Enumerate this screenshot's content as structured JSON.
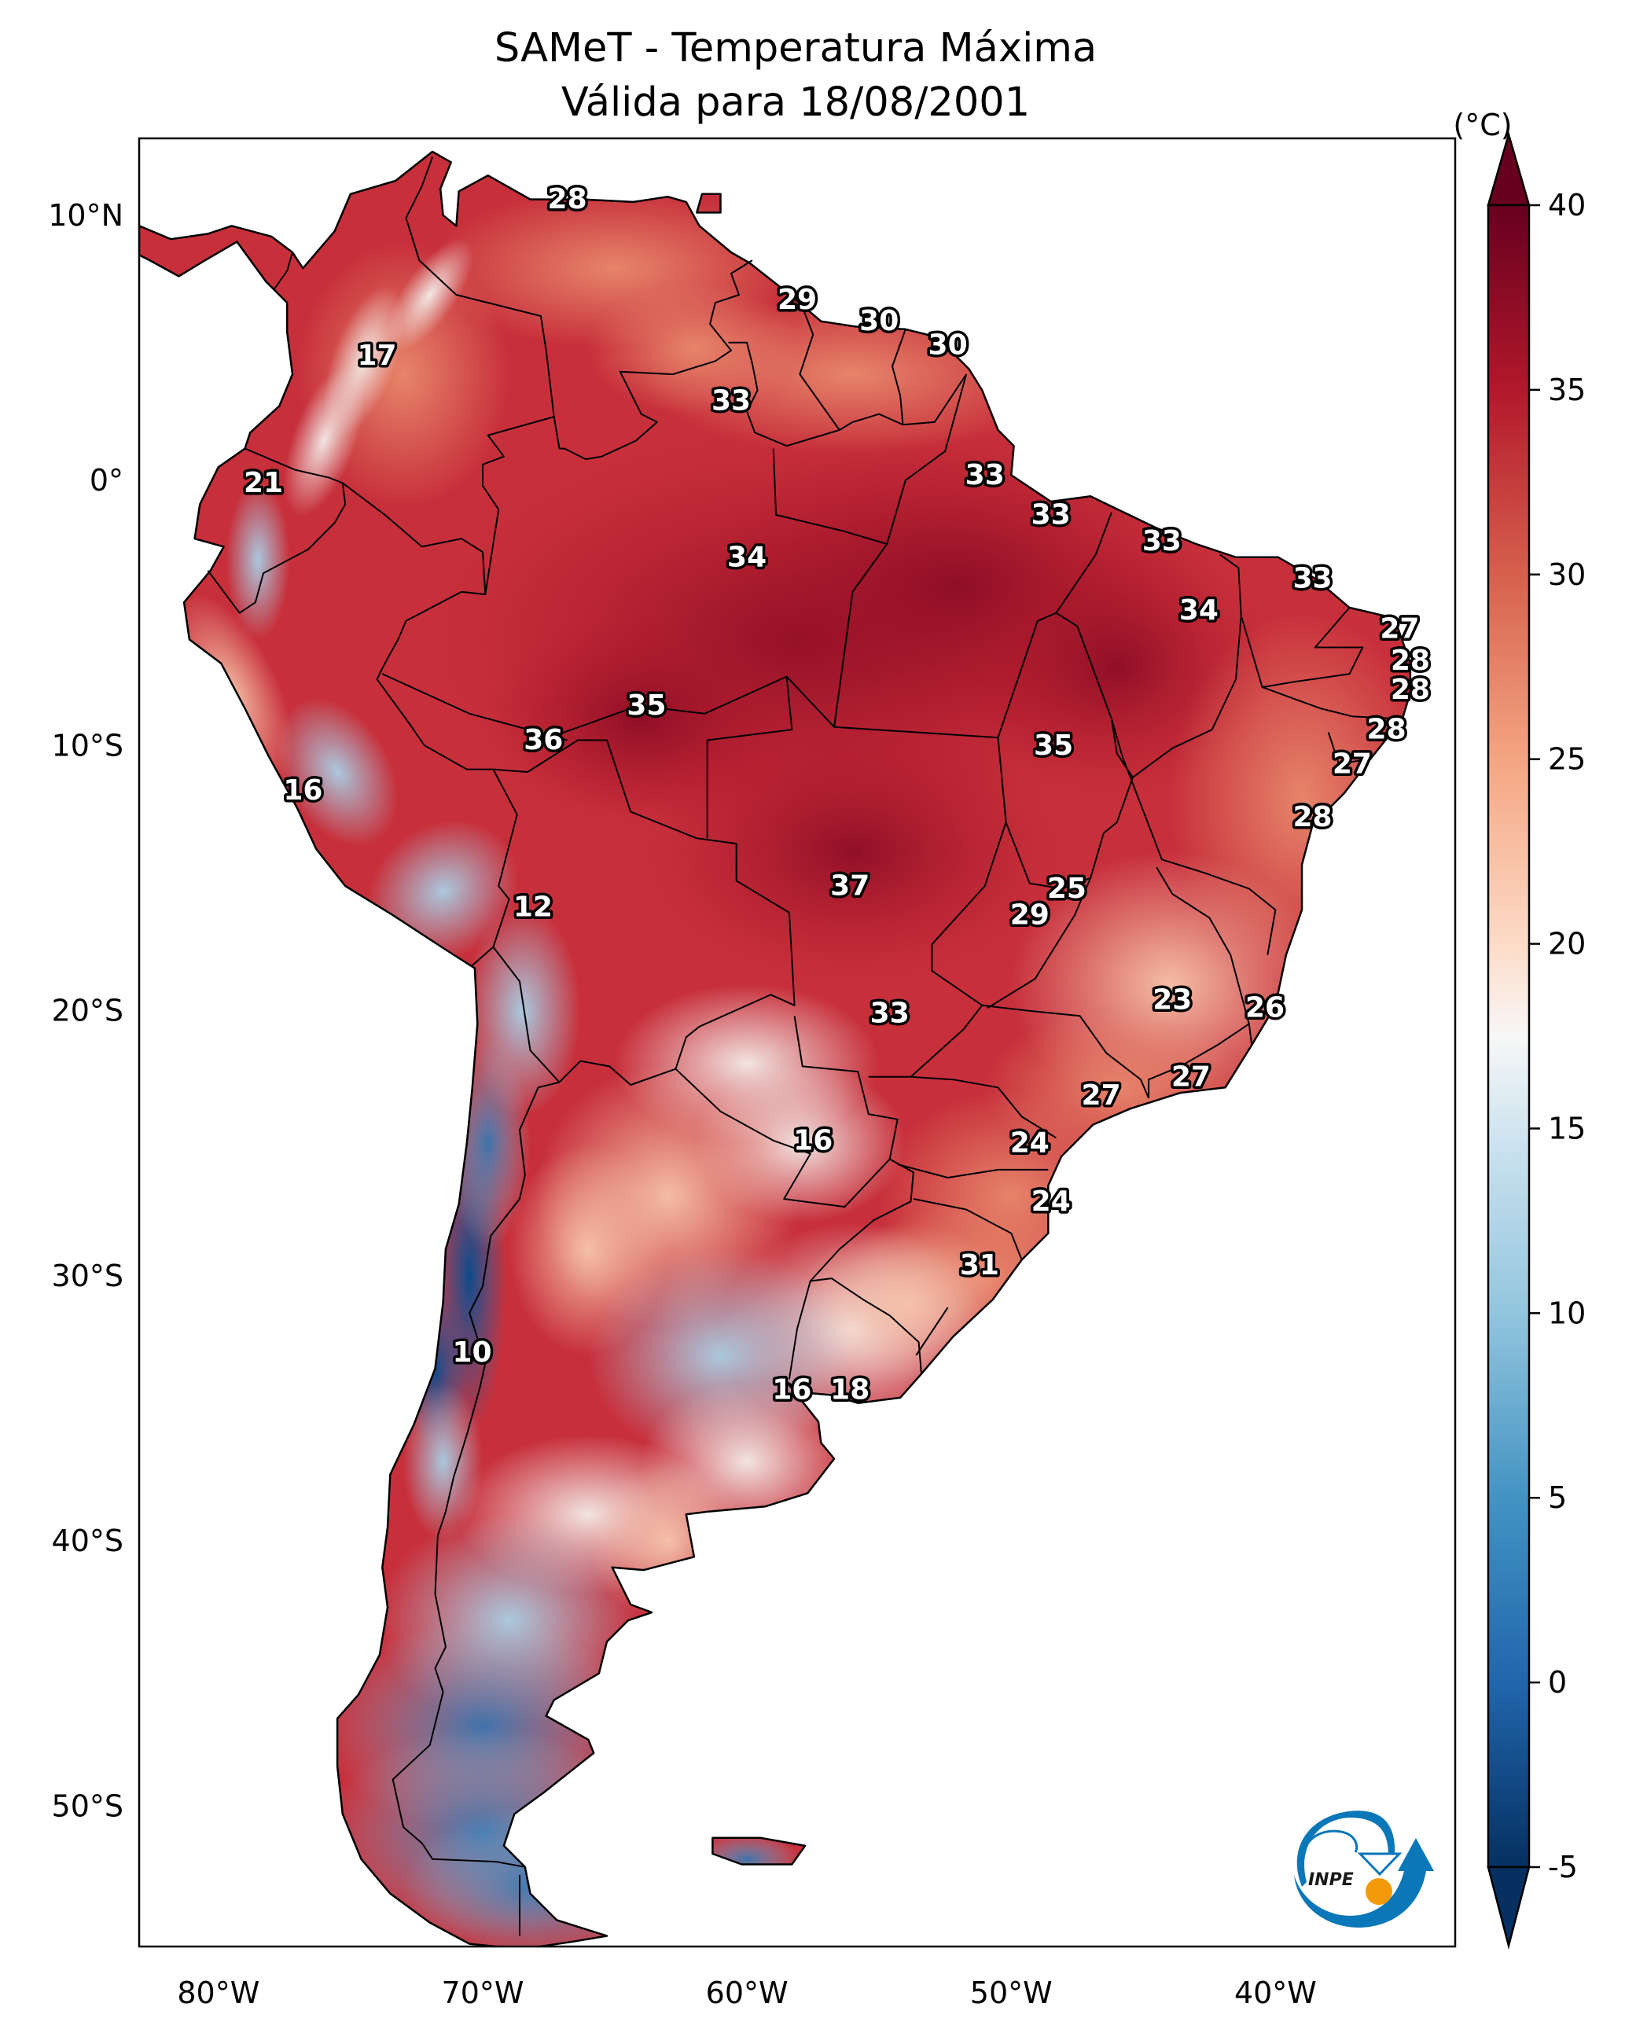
{
  "chart_data": {
    "type": "heatmap",
    "title": "SAMeT - Temperatura Máxima",
    "subtitle": "Válida para 18/08/2001",
    "variable": "Temperatura Máxima",
    "valid_date": "18/08/2001",
    "colormap": "RdBu_r",
    "colorbar": {
      "label": "(°C)",
      "vmin": -5,
      "vmax": 40,
      "extend": "both",
      "ticks": [
        -5,
        0,
        5,
        10,
        15,
        20,
        25,
        30,
        35,
        40
      ],
      "tick_labels": [
        "-5",
        "0",
        "5",
        "10",
        "15",
        "20",
        "25",
        "30",
        "35",
        "40"
      ],
      "stops": [
        {
          "value": -5,
          "color": "#053061"
        },
        {
          "value": 0,
          "color": "#2166ac"
        },
        {
          "value": 5,
          "color": "#4393c3"
        },
        {
          "value": 10,
          "color": "#92c5de"
        },
        {
          "value": 15,
          "color": "#d1e5f0"
        },
        {
          "value": 17.5,
          "color": "#f7f7f7"
        },
        {
          "value": 20,
          "color": "#fddbc7"
        },
        {
          "value": 25,
          "color": "#f4a582"
        },
        {
          "value": 30,
          "color": "#d6604d"
        },
        {
          "value": 35,
          "color": "#b2182b"
        },
        {
          "value": 40,
          "color": "#67001f"
        }
      ]
    },
    "xaxis": {
      "lon_range": [
        -83.0,
        -33.2
      ],
      "ticks": [
        -80,
        -70,
        -60,
        -50,
        -40
      ],
      "tick_labels": [
        "80°W",
        "70°W",
        "60°W",
        "50°W",
        "40°W"
      ]
    },
    "yaxis": {
      "lat_range": [
        -55.3,
        12.9
      ],
      "ticks": [
        10,
        0,
        -10,
        -20,
        -30,
        -40,
        -50
      ],
      "tick_labels": [
        "10°N",
        "0°",
        "10°S",
        "20°S",
        "30°S",
        "40°S",
        "50°S"
      ]
    },
    "grid": false,
    "point_labels": [
      {
        "lon": -66.8,
        "lat": 10.6,
        "value": 28
      },
      {
        "lon": -74.0,
        "lat": 4.7,
        "value": 17
      },
      {
        "lon": -58.1,
        "lat": 6.8,
        "value": 29
      },
      {
        "lon": -55.0,
        "lat": 6.0,
        "value": 30
      },
      {
        "lon": -52.4,
        "lat": 5.1,
        "value": 30
      },
      {
        "lon": -60.6,
        "lat": 3.0,
        "value": 33
      },
      {
        "lon": -78.3,
        "lat": -0.1,
        "value": 21
      },
      {
        "lon": -51.0,
        "lat": 0.2,
        "value": 33
      },
      {
        "lon": -48.5,
        "lat": -1.3,
        "value": 33
      },
      {
        "lon": -60.0,
        "lat": -2.9,
        "value": 34
      },
      {
        "lon": -44.3,
        "lat": -2.3,
        "value": 33
      },
      {
        "lon": -38.6,
        "lat": -3.7,
        "value": 33
      },
      {
        "lon": -42.9,
        "lat": -4.9,
        "value": 34
      },
      {
        "lon": -35.3,
        "lat": -5.6,
        "value": 27
      },
      {
        "lon": -34.9,
        "lat": -6.8,
        "value": 28
      },
      {
        "lon": -34.9,
        "lat": -7.9,
        "value": 28
      },
      {
        "lon": -63.8,
        "lat": -8.5,
        "value": 35
      },
      {
        "lon": -35.8,
        "lat": -9.4,
        "value": 28
      },
      {
        "lon": -67.7,
        "lat": -9.8,
        "value": 36
      },
      {
        "lon": -48.4,
        "lat": -10.0,
        "value": 35
      },
      {
        "lon": -37.1,
        "lat": -10.7,
        "value": 27
      },
      {
        "lon": -76.8,
        "lat": -11.7,
        "value": 16
      },
      {
        "lon": -38.6,
        "lat": -12.7,
        "value": 28
      },
      {
        "lon": -56.1,
        "lat": -15.3,
        "value": 37
      },
      {
        "lon": -47.9,
        "lat": -15.4,
        "value": 25
      },
      {
        "lon": -68.1,
        "lat": -16.1,
        "value": 12
      },
      {
        "lon": -49.3,
        "lat": -16.4,
        "value": 29
      },
      {
        "lon": -43.9,
        "lat": -19.6,
        "value": 23
      },
      {
        "lon": -54.6,
        "lat": -20.1,
        "value": 33
      },
      {
        "lon": -40.4,
        "lat": -19.9,
        "value": 26
      },
      {
        "lon": -43.2,
        "lat": -22.5,
        "value": 27
      },
      {
        "lon": -46.6,
        "lat": -23.2,
        "value": 27
      },
      {
        "lon": -57.5,
        "lat": -24.9,
        "value": 16
      },
      {
        "lon": -49.3,
        "lat": -25.0,
        "value": 24
      },
      {
        "lon": -48.5,
        "lat": -27.2,
        "value": 24
      },
      {
        "lon": -51.2,
        "lat": -29.6,
        "value": 31
      },
      {
        "lon": -70.4,
        "lat": -32.9,
        "value": 10
      },
      {
        "lon": -58.3,
        "lat": -34.3,
        "value": 16
      },
      {
        "lon": -56.1,
        "lat": -34.3,
        "value": 18
      }
    ]
  },
  "logo": {
    "text": "INPE",
    "colors": {
      "blue": "#0a77b8",
      "orange": "#f29a0a"
    }
  }
}
